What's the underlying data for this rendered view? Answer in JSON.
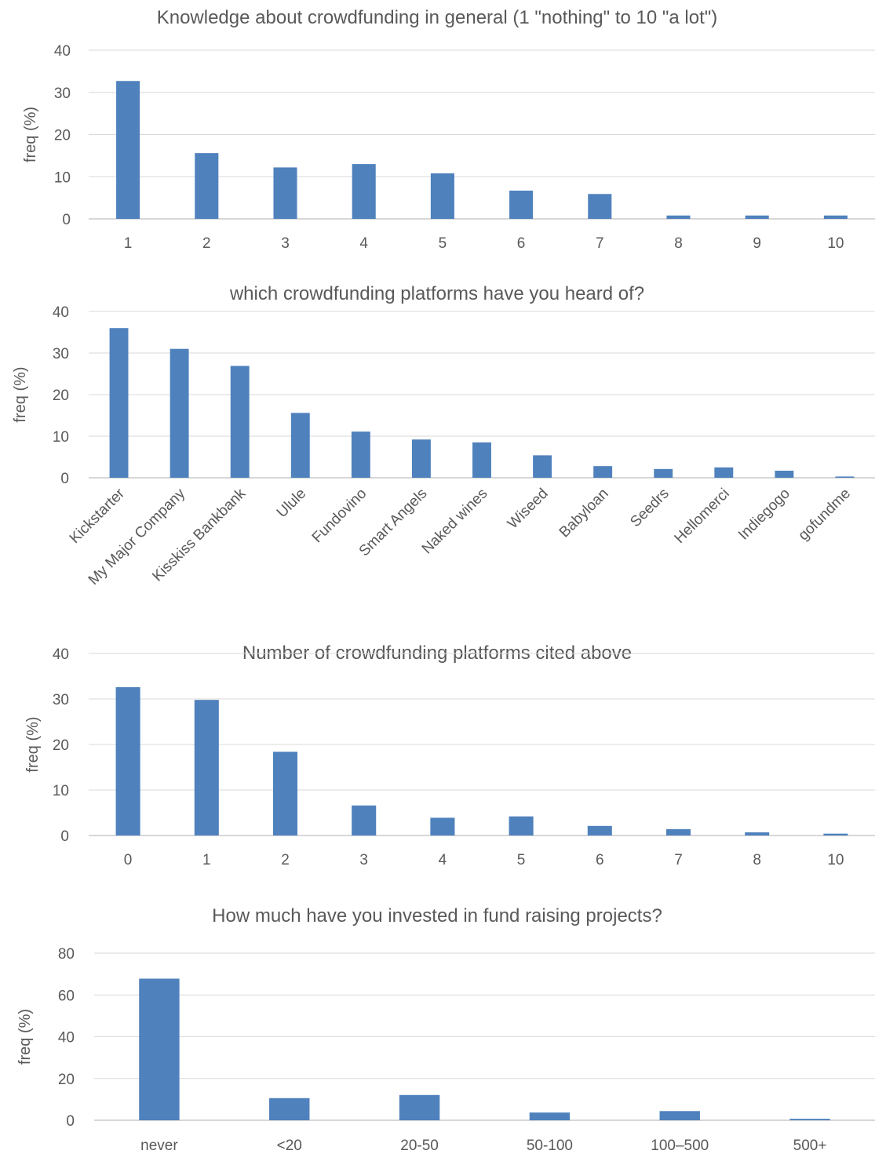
{
  "chart_data": [
    {
      "type": "bar",
      "title": "Knowledge about crowdfunding in general (1 \"nothing\" to 10 \"a lot\")",
      "xlabel": "",
      "ylabel": "freq (%)",
      "ylim": [
        0,
        40
      ],
      "yticks": [
        "0",
        "10",
        "20",
        "30",
        "40"
      ],
      "categories": [
        "1",
        "2",
        "3",
        "4",
        "5",
        "6",
        "7",
        "8",
        "9",
        "10"
      ],
      "values": [
        32.7,
        15.6,
        12.2,
        13.0,
        10.8,
        6.7,
        5.9,
        0.8,
        0.8,
        0.8
      ],
      "grid": true,
      "legend": "none"
    },
    {
      "type": "bar",
      "title": "which crowdfunding platforms have you heard of?",
      "xlabel": "",
      "ylabel": "freq (%)",
      "ylim": [
        0,
        40
      ],
      "yticks": [
        "0",
        "10",
        "20",
        "30",
        "40"
      ],
      "categories": [
        "Kickstarter",
        "My Major Company",
        "Kisskiss Bankbank",
        "Ulule",
        "Fundovino",
        "Smart Angels",
        "Naked wines",
        "Wiseed",
        "Babyloan",
        "Seedrs",
        "Hellomerci",
        "Indiegogo",
        "gofundme"
      ],
      "values": [
        36.0,
        31.0,
        26.9,
        15.6,
        11.1,
        9.2,
        8.5,
        5.4,
        2.8,
        2.1,
        2.5,
        1.7,
        0.3
      ],
      "grid": true,
      "legend": "none"
    },
    {
      "type": "bar",
      "title": "Number of crowdfunding platforms cited above",
      "xlabel": "",
      "ylabel": "freq (%)",
      "ylim": [
        0,
        40
      ],
      "yticks": [
        "0",
        "10",
        "20",
        "30",
        "40"
      ],
      "categories": [
        "0",
        "1",
        "2",
        "3",
        "4",
        "5",
        "6",
        "7",
        "8",
        "10"
      ],
      "values": [
        32.6,
        29.8,
        18.4,
        6.6,
        3.9,
        4.2,
        2.1,
        1.4,
        0.7,
        0.4
      ],
      "grid": true,
      "legend": "none"
    },
    {
      "type": "bar",
      "title": "How much have you invested in fund raising projects?",
      "xlabel": "",
      "ylabel": "freq (%)",
      "ylim": [
        0,
        80
      ],
      "yticks": [
        "0",
        "20",
        "40",
        "60",
        "80"
      ],
      "categories": [
        "never",
        "<20",
        "20-50",
        "50-100",
        "100–500",
        "500+"
      ],
      "values": [
        67.8,
        10.6,
        12.1,
        3.7,
        4.4,
        0.7
      ],
      "grid": true,
      "legend": "none"
    }
  ]
}
